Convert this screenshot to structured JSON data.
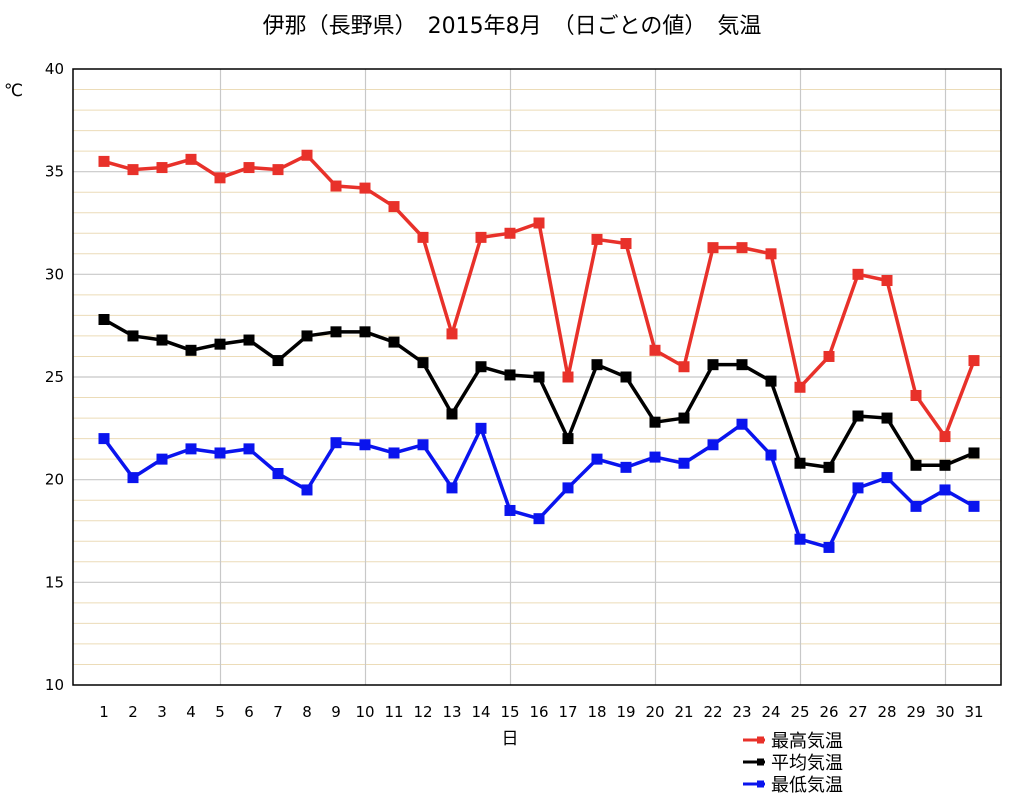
{
  "chart_data": {
    "type": "line",
    "title": "伊那（長野県）　2015年8月　（日ごとの値）　気温",
    "xlabel": "日",
    "ylabel": "℃",
    "ylim": [
      10,
      40
    ],
    "y_ticks": [
      "10",
      "15",
      "20",
      "25",
      "30",
      "35",
      "40"
    ],
    "categories": [
      "1",
      "2",
      "3",
      "4",
      "5",
      "6",
      "7",
      "8",
      "9",
      "10",
      "11",
      "12",
      "13",
      "14",
      "15",
      "16",
      "17",
      "18",
      "19",
      "20",
      "21",
      "22",
      "23",
      "24",
      "25",
      "26",
      "27",
      "28",
      "29",
      "30",
      "31"
    ],
    "grid": true,
    "legend_position": "bottom-right",
    "series": [
      {
        "name": "最高気温",
        "color": "#e8312a",
        "values": [
          35.5,
          35.1,
          35.2,
          35.6,
          34.7,
          35.2,
          35.1,
          35.8,
          34.3,
          34.2,
          33.3,
          31.8,
          27.1,
          31.8,
          32.0,
          32.5,
          25.0,
          31.7,
          31.5,
          26.3,
          25.5,
          31.3,
          31.3,
          31.0,
          24.5,
          26.0,
          30.0,
          29.7,
          24.1,
          22.1,
          25.8
        ]
      },
      {
        "name": "平均気温",
        "color": "#000000",
        "values": [
          27.8,
          27.0,
          26.8,
          26.3,
          26.6,
          26.8,
          25.8,
          27.0,
          27.2,
          27.2,
          26.7,
          25.7,
          23.2,
          25.5,
          25.1,
          25.0,
          22.0,
          25.6,
          25.0,
          22.8,
          23.0,
          25.6,
          25.6,
          24.8,
          20.8,
          20.6,
          23.1,
          23.0,
          20.7,
          20.7,
          21.3
        ]
      },
      {
        "name": "最低気温",
        "color": "#0a14ee",
        "values": [
          22.0,
          20.1,
          21.0,
          21.5,
          21.3,
          21.5,
          20.3,
          19.5,
          21.8,
          21.7,
          21.3,
          21.7,
          19.6,
          22.5,
          18.5,
          18.1,
          19.6,
          21.0,
          20.6,
          21.1,
          20.8,
          21.7,
          22.7,
          21.2,
          17.1,
          16.7,
          19.6,
          20.1,
          18.7,
          19.5,
          18.7
        ]
      }
    ]
  }
}
